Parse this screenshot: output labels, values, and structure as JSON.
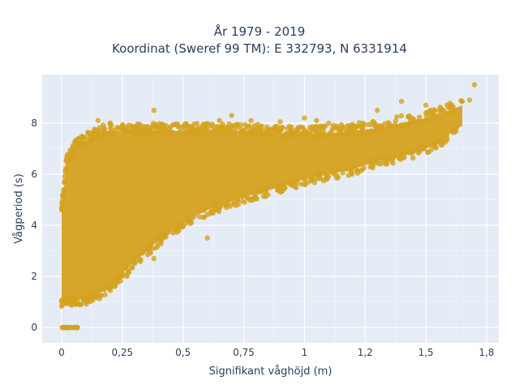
{
  "chart_data": {
    "type": "scatter",
    "title": "År 1979 - 2019",
    "subtitle": "Koordinat (Sweref 99 TM): E 332793, N 6331914",
    "xlabel": "Signifikant våghöjd (m)",
    "ylabel": "Vågperiod (s)",
    "xlim": [
      -0.08,
      1.8
    ],
    "ylim": [
      -0.6,
      9.9
    ],
    "x_ticks": [
      0,
      0.25,
      0.5,
      0.75,
      1,
      1.25,
      1.5,
      1.75
    ],
    "x_tick_labels": [
      "0",
      "0,25",
      "0,5",
      "0,75",
      "1",
      "1,2",
      "1,5",
      "1,8"
    ],
    "y_ticks": [
      0,
      2,
      4,
      6,
      8
    ],
    "y_tick_labels": [
      "0",
      "2",
      "4",
      "6",
      "8"
    ],
    "grid": true,
    "marker_color": "#D4A21F",
    "background_color": "#E5ECF6",
    "density_envelope": {
      "x": [
        0.0,
        0.02,
        0.05,
        0.1,
        0.15,
        0.2,
        0.25,
        0.3,
        0.4,
        0.5,
        0.6,
        0.75,
        0.9,
        1.0,
        1.1,
        1.2,
        1.3,
        1.4,
        1.5,
        1.55,
        1.6,
        1.65
      ],
      "lower": [
        1.0,
        1.1,
        1.1,
        1.1,
        1.3,
        1.6,
        2.1,
        2.6,
        3.4,
        4.1,
        4.6,
        5.1,
        5.5,
        5.8,
        6.0,
        6.2,
        6.5,
        6.7,
        7.0,
        7.2,
        7.6,
        7.9
      ],
      "upper": [
        4.5,
        6.4,
        7.0,
        7.3,
        7.6,
        7.7,
        7.7,
        7.7,
        7.7,
        7.7,
        7.7,
        7.7,
        7.6,
        7.6,
        7.6,
        7.7,
        7.8,
        8.0,
        8.2,
        8.3,
        8.5,
        8.7
      ]
    },
    "zero_period_points": {
      "x_min": 0.0,
      "x_max": 0.07,
      "y": 0
    },
    "outliers": [
      {
        "x": 0.38,
        "y": 8.5
      },
      {
        "x": 0.15,
        "y": 8.1
      },
      {
        "x": 0.2,
        "y": 8.0
      },
      {
        "x": 0.78,
        "y": 8.1
      },
      {
        "x": 1.0,
        "y": 8.2
      },
      {
        "x": 1.3,
        "y": 8.5
      },
      {
        "x": 1.4,
        "y": 8.85
      },
      {
        "x": 1.5,
        "y": 8.7
      },
      {
        "x": 1.6,
        "y": 8.6
      },
      {
        "x": 1.7,
        "y": 9.5
      },
      {
        "x": 1.68,
        "y": 8.9
      },
      {
        "x": 1.65,
        "y": 8.85
      },
      {
        "x": 0.65,
        "y": 8.1
      },
      {
        "x": 0.7,
        "y": 8.3
      },
      {
        "x": 0.9,
        "y": 8.05
      },
      {
        "x": 1.05,
        "y": 8.1
      },
      {
        "x": 1.1,
        "y": 8.0
      },
      {
        "x": 0.6,
        "y": 3.5
      },
      {
        "x": 0.38,
        "y": 2.7
      },
      {
        "x": 0.3,
        "y": 2.5
      },
      {
        "x": 0.27,
        "y": 2.0
      }
    ]
  }
}
